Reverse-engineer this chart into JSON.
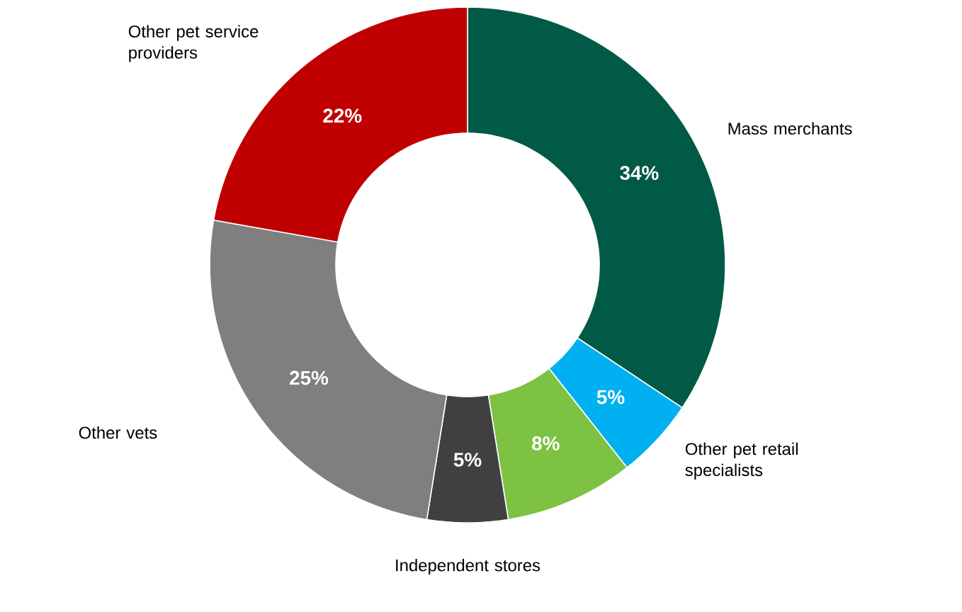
{
  "chart_data": {
    "type": "donut",
    "categories": [
      "Mass merchants",
      "Other pet retail specialists",
      null,
      "Independent stores",
      "Other vets",
      "Other pet service providers"
    ],
    "values": [
      34,
      5,
      8,
      5,
      25,
      22
    ],
    "value_labels": [
      "34%",
      "5%",
      "8%",
      "5%",
      "25%",
      "22%"
    ],
    "colors": [
      "#005a46",
      "#00b0f0",
      "#7dc242",
      "#404040",
      "#7f7f7f",
      "#c00000"
    ]
  }
}
